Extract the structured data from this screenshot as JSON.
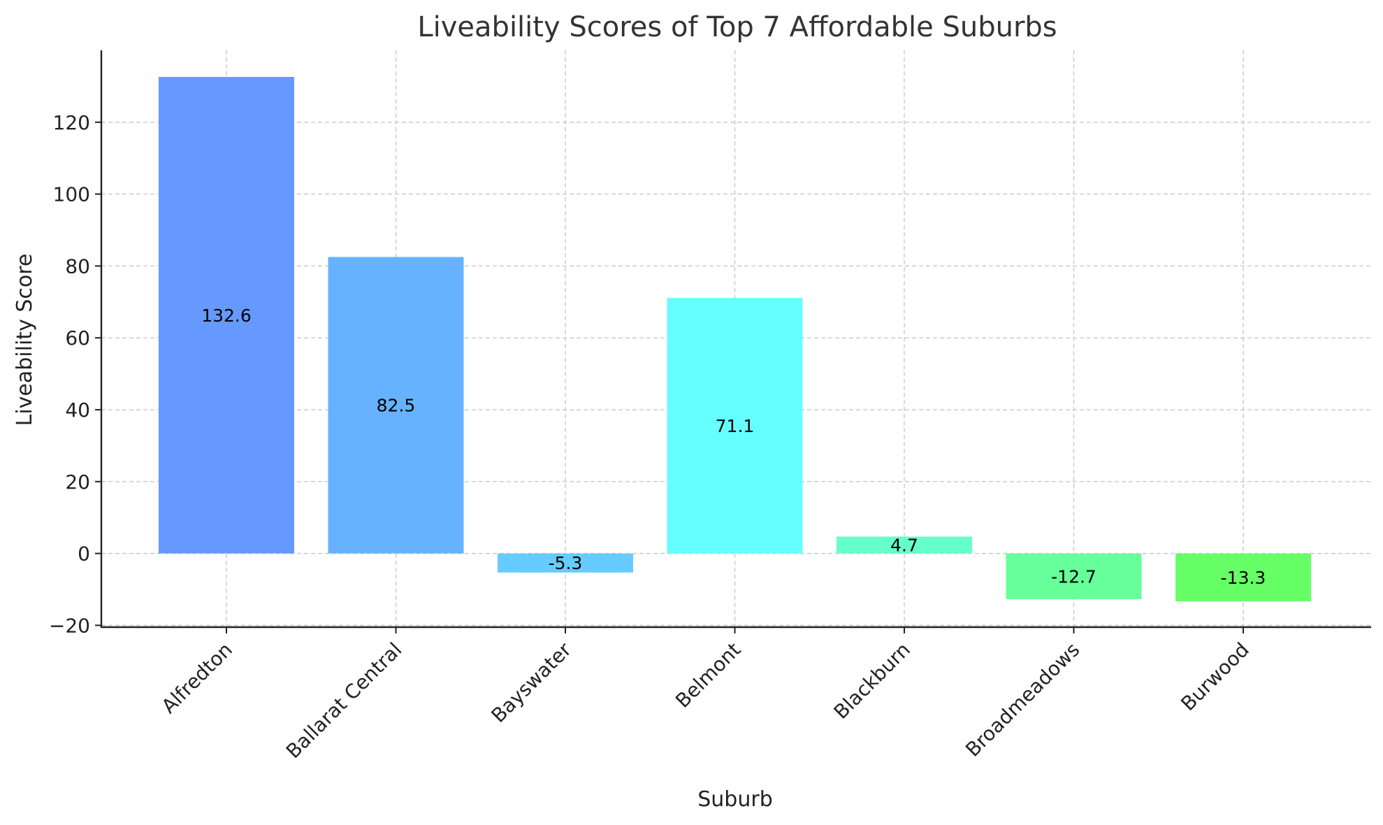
{
  "chart_data": {
    "type": "bar",
    "title": "Liveability Scores of Top 7 Affordable Suburbs",
    "xlabel": "Suburb",
    "ylabel": "Liveability Score",
    "categories": [
      "Alfredton",
      "Ballarat Central",
      "Bayswater",
      "Belmont",
      "Blackburn",
      "Broadmeadows",
      "Burwood"
    ],
    "values": [
      132.6,
      82.5,
      -5.3,
      71.1,
      4.7,
      -12.7,
      -13.3
    ],
    "data_labels": [
      "132.6",
      "82.5",
      "-5.3",
      "71.1",
      "4.7",
      "-12.7",
      "-13.3"
    ],
    "bar_colors": [
      "#6699ff",
      "#66b2ff",
      "#66ccff",
      "#66ffff",
      "#66ffcc",
      "#66ff99",
      "#66ff66"
    ],
    "ylim": [
      -20.5,
      140
    ],
    "yticks": [
      -20,
      0,
      20,
      40,
      60,
      80,
      100,
      120
    ],
    "ytick_labels": [
      "−20",
      "0",
      "20",
      "40",
      "60",
      "80",
      "100",
      "120"
    ],
    "grid": true,
    "legend": "none"
  }
}
